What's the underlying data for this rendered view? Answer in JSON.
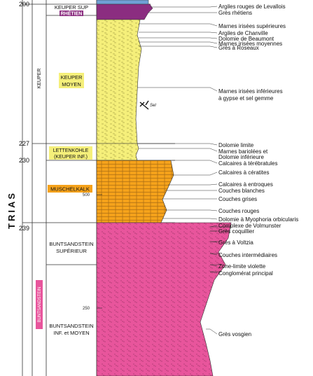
{
  "system": {
    "name": "TRIAS"
  },
  "series": {
    "keuper": "KEUPER",
    "buntsandstein": "BUNTSANDSTEIN"
  },
  "ages": [
    "200",
    "227",
    "230",
    "239"
  ],
  "stages": {
    "keuper_sup": "KEUPER SUP",
    "rhetien": "RHÉTIEN",
    "keuper_moyen_1": "KEUPER",
    "keuper_moyen_2": "MOYEN",
    "lettenkohle_1": "LETTENKOHLE",
    "lettenkohle_2": "(KEUPER INF.)",
    "muschelkalk": "MUSCHELKALK",
    "bunt_sup_1": "BUNTSANDSTEIN",
    "bunt_sup_2": "SUPÉRIEUR",
    "bunt_inf_1": "BUNTSANDSTEIN",
    "bunt_inf_2": "INF. et MOYEN"
  },
  "thickness_scale": [
    "500",
    "250"
  ],
  "sel_label": "Sel",
  "colors": {
    "keuper": "#f5ef7a",
    "muschelkalk": "#f5a21b",
    "buntsandstein": "#e8559c",
    "rhetien": "#8b2d80",
    "sup_top": "#6fa1d6"
  },
  "annotations": [
    "Argiles rouges de Levallois",
    "Grès rhétiens",
    "Marnes irisées supérieures",
    "Argiles de Chanville",
    "Dolomie de Beaumont",
    "Marnes irisées moyennes",
    "Grès à Roseaux",
    "Marnes irisées inférieures",
    "à gypse et sel gemme",
    "Dolomie limite",
    "Marnes bariolées et",
    "Dolomie inférieure",
    "Calcaires à térébratules",
    "Calcaires à cératites",
    "Calcaires à entroques",
    "Couches blanches",
    "Couches grises",
    "Couches rouges",
    "Dolomie à Myophoria orbicularis",
    "Complexe de Volmunster",
    "Grès coquillier",
    "Grès à Voltzia",
    "Couches intermédiaires",
    "Zone-limite violette",
    "Conglomérat principal",
    "Grès vosgien"
  ]
}
